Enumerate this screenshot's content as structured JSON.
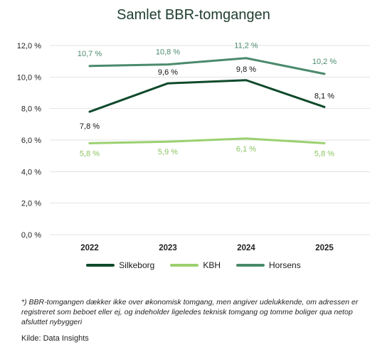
{
  "chart_data": {
    "type": "line",
    "title": "Samlet BBR-tomgangen",
    "categories": [
      "2022",
      "2023",
      "2024",
      "2025"
    ],
    "yticks": [
      "0,0 %",
      "2,0 %",
      "4,0 %",
      "6,0 %",
      "8,0 %",
      "10,0 %",
      "12,0 %"
    ],
    "ylim": [
      0,
      12
    ],
    "grid": "horizontal",
    "legend": "bottom",
    "series": [
      {
        "name": "Silkeborg",
        "color": "#0f4a2c",
        "values": [
          7.8,
          9.6,
          9.8,
          8.1
        ],
        "labels": [
          "7,8 %",
          "9,6 %",
          "9,8 %",
          "8,1 %"
        ]
      },
      {
        "name": "KBH",
        "color": "#9bd06e",
        "values": [
          5.8,
          5.9,
          6.1,
          5.8
        ],
        "labels": [
          "5,8 %",
          "5,9 %",
          "6,1 %",
          "5,8 %"
        ]
      },
      {
        "name": "Horsens",
        "color": "#4a8a6c",
        "values": [
          10.7,
          10.8,
          11.2,
          10.2
        ],
        "labels": [
          "10,7 %",
          "10,8 %",
          "11,2 %",
          "10,2 %"
        ]
      }
    ]
  },
  "footnote": "*) BBR-tomgangen dækker ikke over økonomisk tomgang, men angiver udelukkende, om adressen er registreret som beboet eller ej, og indeholder ligeledes teknisk tomgang og tomme boliger qua netop afsluttet nybyggeri",
  "source": "Kilde: Data Insights"
}
